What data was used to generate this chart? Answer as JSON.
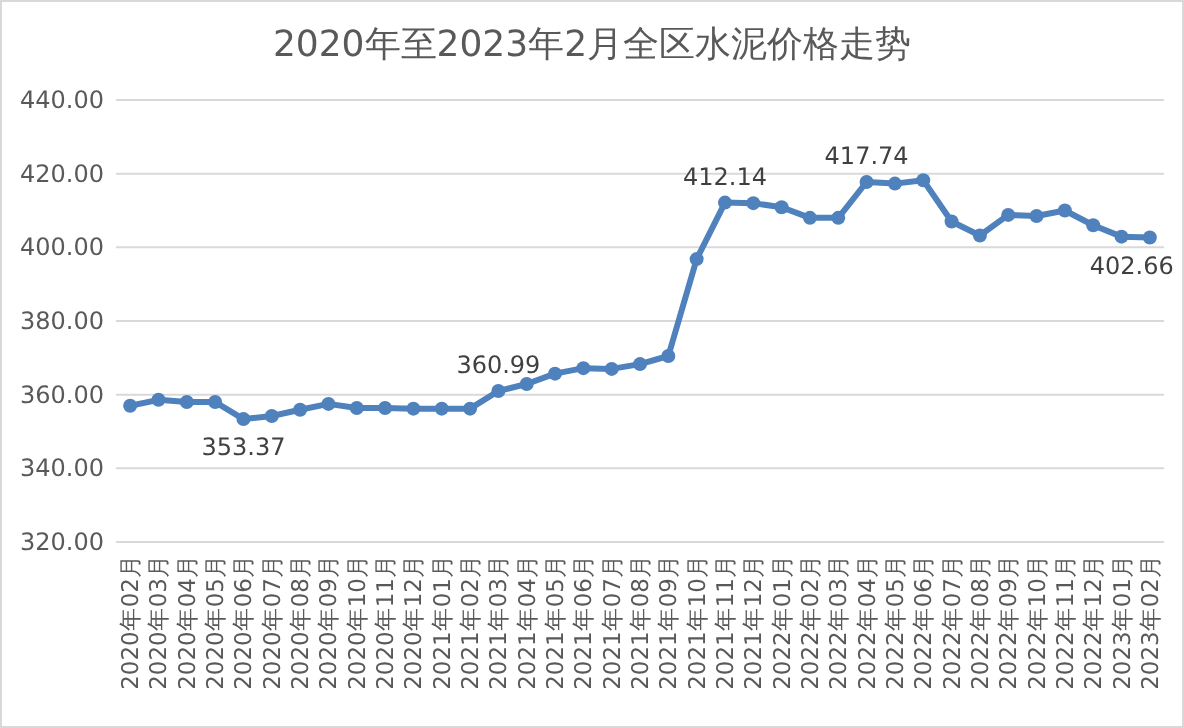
{
  "chart_data": {
    "type": "line",
    "title": "2020年至2023年2月全区水泥价格走势",
    "categories": [
      "2020年02月",
      "2020年03月",
      "2020年04月",
      "2020年05月",
      "2020年06月",
      "2020年07月",
      "2020年08月",
      "2020年09月",
      "2020年10月",
      "2020年11月",
      "2020年12月",
      "2021年01月",
      "2021年02月",
      "2021年03月",
      "2021年04月",
      "2021年05月",
      "2021年06月",
      "2021年07月",
      "2021年08月",
      "2021年09月",
      "2021年10月",
      "2021年11月",
      "2021年12月",
      "2022年01月",
      "2022年02月",
      "2022年03月",
      "2022年04月",
      "2022年05月",
      "2022年06月",
      "2022年07月",
      "2022年08月",
      "2022年09月",
      "2022年10月",
      "2022年11月",
      "2022年12月",
      "2023年01月",
      "2023年02月"
    ],
    "series": [
      {
        "color": "#4f81bd",
        "values": [
          357.0,
          358.6,
          358.0,
          358.0,
          353.37,
          354.2,
          355.9,
          357.5,
          356.4,
          356.4,
          356.2,
          356.2,
          356.2,
          360.99,
          362.9,
          365.7,
          367.2,
          367.0,
          368.3,
          370.5,
          396.8,
          412.14,
          412.0,
          410.9,
          408.0,
          408.0,
          417.74,
          417.3,
          418.2,
          407.0,
          403.2,
          408.8,
          408.5,
          410.0,
          406.0,
          402.9,
          402.66
        ],
        "value_labels": [
          null,
          null,
          null,
          null,
          "353.37",
          null,
          null,
          null,
          null,
          null,
          null,
          null,
          null,
          "360.99",
          null,
          null,
          null,
          null,
          null,
          null,
          null,
          "412.14",
          null,
          null,
          null,
          null,
          "417.74",
          null,
          null,
          null,
          null,
          null,
          null,
          null,
          null,
          null,
          "402.66"
        ]
      }
    ],
    "ylim": [
      320,
      440
    ],
    "yticks": [
      {
        "value": 320,
        "label": "320.00"
      },
      {
        "value": 340,
        "label": "340.00"
      },
      {
        "value": 360,
        "label": "360.00"
      },
      {
        "value": 380,
        "label": "380.00"
      },
      {
        "value": 400,
        "label": "400.00"
      },
      {
        "value": 420,
        "label": "420.00"
      },
      {
        "value": 440,
        "label": "440.00"
      }
    ],
    "grid": "y",
    "marker": "circle",
    "line_style": "solid"
  }
}
